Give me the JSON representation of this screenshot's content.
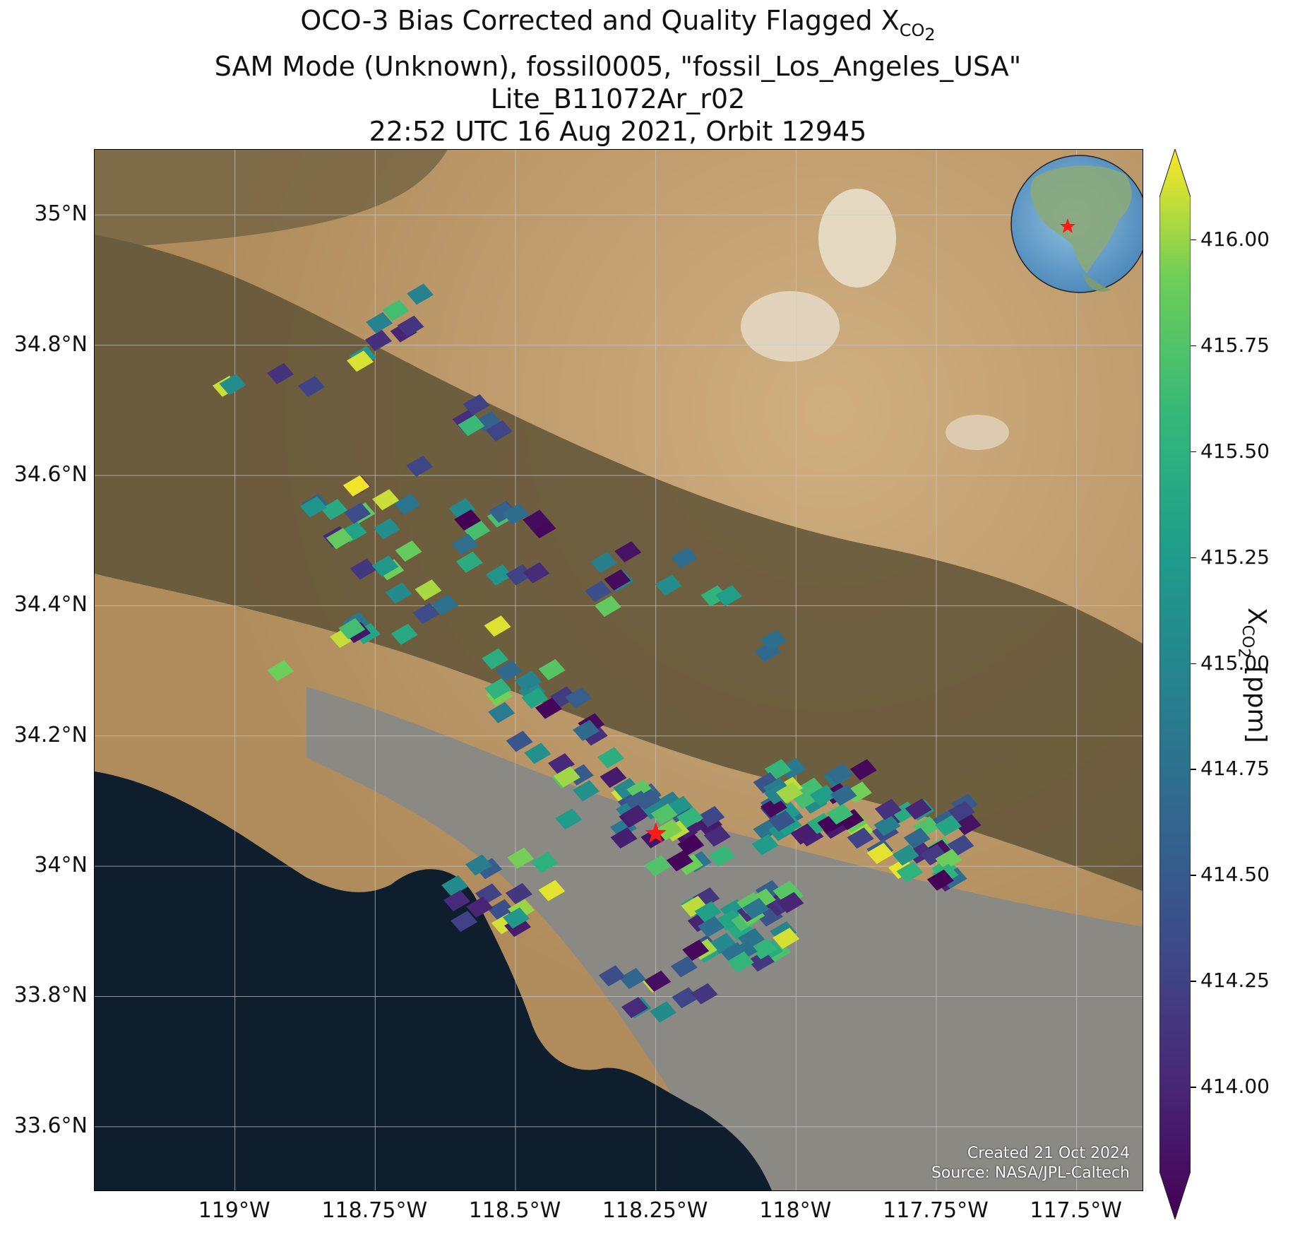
{
  "title": {
    "line1_prefix": "OCO-3 Bias Corrected and Quality Flagged X",
    "line1_sub": "CO",
    "line1_sub2": "2",
    "line2": "SAM Mode (Unknown), fossil0005, \"fossil_Los_Angeles_USA\"",
    "line3": "Lite_B11072Ar_r02",
    "line4": "22:52 UTC 16 Aug 2021, Orbit 12945"
  },
  "map": {
    "lat_ticks": [
      "35°N",
      "34.8°N",
      "34.6°N",
      "34.4°N",
      "34.2°N",
      "34°N",
      "33.8°N",
      "33.6°N"
    ],
    "lon_ticks": [
      "119°W",
      "118.75°W",
      "118.5°W",
      "118.25°W",
      "118°W",
      "117.75°W",
      "117.5°W"
    ],
    "extent": {
      "lon_min": -119.25,
      "lon_max": -117.38,
      "lat_min": 33.5,
      "lat_max": 35.1
    },
    "target_marker": {
      "lon": -118.25,
      "lat": 34.05,
      "symbol": "red-star"
    },
    "inset": "globe-locator",
    "credit_line1": "Created 21 Oct 2024",
    "credit_line2": "Source: NASA/JPL-Caltech",
    "colors": {
      "land": "#8a7a58",
      "ocean": "#0e1e2c",
      "mountain": "#5e5236",
      "desert": "#c4a274",
      "urban": "#8c8a86",
      "grid": "#c8c8c8"
    }
  },
  "colorbar": {
    "ticks": [
      "416.00",
      "415.75",
      "415.50",
      "415.25",
      "415.00",
      "414.75",
      "414.50",
      "414.25",
      "414.00"
    ],
    "label_prefix": "X",
    "label_sub": "CO",
    "label_sub2": "2",
    "label_suffix": " [ppm]",
    "range": [
      413.8,
      416.1
    ],
    "colormap": "viridis",
    "extend": "both"
  }
}
